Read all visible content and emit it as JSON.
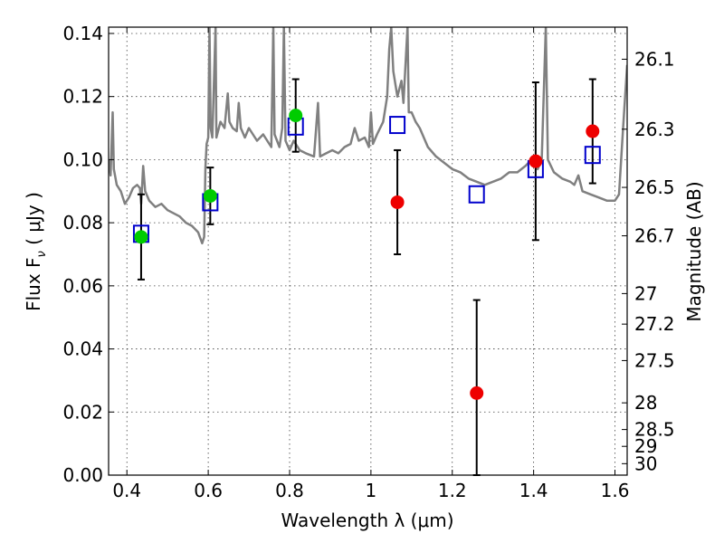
{
  "chart_data": {
    "type": "scatter",
    "xlabel": "Wavelength  λ (μm)",
    "ylabel_main": "Flux  F",
    "ylabel_sub": "ν",
    "ylabel_unit": "  ( μJy )",
    "y2label": "Magnitude (AB)",
    "xlim": [
      0.355,
      1.63
    ],
    "ylim": [
      0.0,
      0.142
    ],
    "x_ticks": [
      0.4,
      0.6,
      0.8,
      1.0,
      1.2,
      1.4,
      1.6
    ],
    "x_tick_labels": [
      "0.4",
      "0.6",
      "0.8",
      "1",
      "1.2",
      "1.4",
      "1.6"
    ],
    "y_ticks": [
      0.0,
      0.02,
      0.04,
      0.06,
      0.08,
      0.1,
      0.12,
      0.14
    ],
    "y_tick_labels": [
      "0.00",
      "0.02",
      "0.04",
      "0.06",
      "0.08",
      "0.10",
      "0.12",
      "0.14"
    ],
    "mag_ticks": [
      26.1,
      26.3,
      26.5,
      26.7,
      27,
      27.2,
      27.5,
      28,
      28.5,
      29,
      30
    ],
    "mag_tick_labels": [
      "26.1",
      "26.3",
      "26.5",
      "26.7",
      "27",
      "27.2",
      "27.5",
      "28",
      "28.5",
      "29",
      "30"
    ],
    "grid": true,
    "colors": {
      "spectrum": "#808080",
      "model": "#0000cc",
      "detected": "#00cc00",
      "measured": "#ee0000",
      "errorbar": "#000000"
    },
    "model_points": [
      {
        "x": 0.435,
        "y": 0.0765
      },
      {
        "x": 0.605,
        "y": 0.0865
      },
      {
        "x": 0.815,
        "y": 0.1105
      },
      {
        "x": 1.065,
        "y": 0.111
      },
      {
        "x": 1.26,
        "y": 0.089
      },
      {
        "x": 1.405,
        "y": 0.097
      },
      {
        "x": 1.545,
        "y": 0.1015
      }
    ],
    "observed_points": [
      {
        "x": 0.435,
        "y": 0.0755,
        "yerr_lo": 0.0135,
        "yerr_hi": 0.0135,
        "color": "detected"
      },
      {
        "x": 0.605,
        "y": 0.0885,
        "yerr_lo": 0.009,
        "yerr_hi": 0.009,
        "color": "detected"
      },
      {
        "x": 0.815,
        "y": 0.114,
        "yerr_lo": 0.0115,
        "yerr_hi": 0.0115,
        "color": "detected"
      },
      {
        "x": 1.065,
        "y": 0.0865,
        "yerr_lo": 0.0165,
        "yerr_hi": 0.0165,
        "color": "measured"
      },
      {
        "x": 1.26,
        "y": 0.026,
        "yerr_lo": 0.026,
        "yerr_hi": 0.0295,
        "color": "measured"
      },
      {
        "x": 1.405,
        "y": 0.0995,
        "yerr_lo": 0.025,
        "yerr_hi": 0.025,
        "color": "measured"
      },
      {
        "x": 1.545,
        "y": 0.109,
        "yerr_lo": 0.0165,
        "yerr_hi": 0.0165,
        "color": "measured"
      }
    ],
    "spectrum": [
      [
        0.355,
        0.1
      ],
      [
        0.36,
        0.095
      ],
      [
        0.365,
        0.115
      ],
      [
        0.368,
        0.097
      ],
      [
        0.375,
        0.092
      ],
      [
        0.385,
        0.09
      ],
      [
        0.395,
        0.086
      ],
      [
        0.405,
        0.088
      ],
      [
        0.415,
        0.091
      ],
      [
        0.425,
        0.092
      ],
      [
        0.432,
        0.091
      ],
      [
        0.435,
        0.086
      ],
      [
        0.44,
        0.098
      ],
      [
        0.445,
        0.09
      ],
      [
        0.455,
        0.087
      ],
      [
        0.47,
        0.085
      ],
      [
        0.485,
        0.086
      ],
      [
        0.5,
        0.084
      ],
      [
        0.515,
        0.083
      ],
      [
        0.53,
        0.082
      ],
      [
        0.545,
        0.08
      ],
      [
        0.56,
        0.079
      ],
      [
        0.575,
        0.077
      ],
      [
        0.585,
        0.0735
      ],
      [
        0.59,
        0.0755
      ],
      [
        0.593,
        0.0975
      ],
      [
        0.596,
        0.105
      ],
      [
        0.6,
        0.107
      ],
      [
        0.603,
        0.142
      ],
      [
        0.606,
        0.11
      ],
      [
        0.61,
        0.107
      ],
      [
        0.618,
        0.142
      ],
      [
        0.62,
        0.107
      ],
      [
        0.63,
        0.112
      ],
      [
        0.64,
        0.11
      ],
      [
        0.648,
        0.121
      ],
      [
        0.652,
        0.112
      ],
      [
        0.66,
        0.11
      ],
      [
        0.67,
        0.109
      ],
      [
        0.675,
        0.118
      ],
      [
        0.68,
        0.11
      ],
      [
        0.69,
        0.107
      ],
      [
        0.7,
        0.11
      ],
      [
        0.71,
        0.108
      ],
      [
        0.72,
        0.106
      ],
      [
        0.735,
        0.108
      ],
      [
        0.745,
        0.106
      ],
      [
        0.755,
        0.104
      ],
      [
        0.76,
        0.142
      ],
      [
        0.763,
        0.108
      ],
      [
        0.775,
        0.104
      ],
      [
        0.782,
        0.11
      ],
      [
        0.786,
        0.142
      ],
      [
        0.79,
        0.106
      ],
      [
        0.8,
        0.103
      ],
      [
        0.81,
        0.106
      ],
      [
        0.825,
        0.103
      ],
      [
        0.84,
        0.102
      ],
      [
        0.86,
        0.101
      ],
      [
        0.87,
        0.118
      ],
      [
        0.875,
        0.101
      ],
      [
        0.89,
        0.102
      ],
      [
        0.905,
        0.103
      ],
      [
        0.92,
        0.102
      ],
      [
        0.935,
        0.104
      ],
      [
        0.95,
        0.105
      ],
      [
        0.96,
        0.11
      ],
      [
        0.97,
        0.106
      ],
      [
        0.985,
        0.107
      ],
      [
        0.995,
        0.104
      ],
      [
        1.0,
        0.115
      ],
      [
        1.005,
        0.105
      ],
      [
        1.015,
        0.108
      ],
      [
        1.03,
        0.112
      ],
      [
        1.04,
        0.12
      ],
      [
        1.045,
        0.135
      ],
      [
        1.05,
        0.142
      ],
      [
        1.055,
        0.128
      ],
      [
        1.065,
        0.12
      ],
      [
        1.075,
        0.125
      ],
      [
        1.08,
        0.118
      ],
      [
        1.09,
        0.142
      ],
      [
        1.093,
        0.115
      ],
      [
        1.1,
        0.115
      ],
      [
        1.11,
        0.112
      ],
      [
        1.12,
        0.11
      ],
      [
        1.14,
        0.104
      ],
      [
        1.16,
        0.101
      ],
      [
        1.18,
        0.099
      ],
      [
        1.2,
        0.097
      ],
      [
        1.22,
        0.096
      ],
      [
        1.24,
        0.094
      ],
      [
        1.26,
        0.093
      ],
      [
        1.28,
        0.092
      ],
      [
        1.3,
        0.093
      ],
      [
        1.32,
        0.094
      ],
      [
        1.34,
        0.096
      ],
      [
        1.36,
        0.096
      ],
      [
        1.38,
        0.098
      ],
      [
        1.395,
        0.1
      ],
      [
        1.405,
        0.099
      ],
      [
        1.41,
        0.097
      ],
      [
        1.42,
        0.1
      ],
      [
        1.43,
        0.142
      ],
      [
        1.435,
        0.1
      ],
      [
        1.45,
        0.096
      ],
      [
        1.47,
        0.094
      ],
      [
        1.49,
        0.093
      ],
      [
        1.5,
        0.092
      ],
      [
        1.51,
        0.095
      ],
      [
        1.52,
        0.09
      ],
      [
        1.54,
        0.089
      ],
      [
        1.56,
        0.088
      ],
      [
        1.58,
        0.087
      ],
      [
        1.6,
        0.087
      ],
      [
        1.61,
        0.089
      ],
      [
        1.62,
        0.11
      ],
      [
        1.63,
        0.13
      ]
    ]
  }
}
